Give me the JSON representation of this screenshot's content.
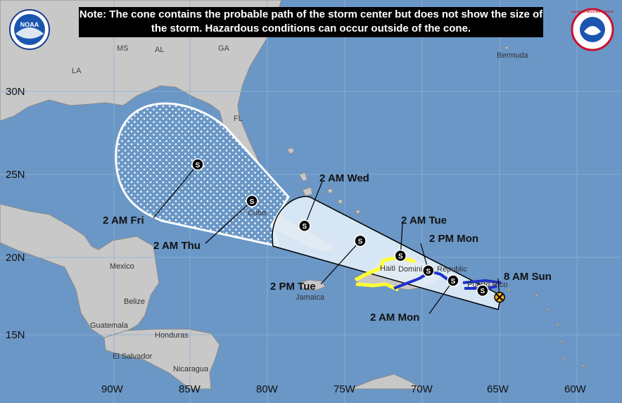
{
  "note": "Note: The cone contains the probable path of the storm center but does not show the size of the storm. Hazardous conditions can occur outside of the cone.",
  "logos": {
    "left": "NOAA",
    "right": "NATIONAL WEATHER SERVICE"
  },
  "colors": {
    "ocean": "#6a97c6",
    "land": "#c8c8c8",
    "cone_day1_3": "#e3eef8",
    "cone_day4_5_dots": "#ffffff",
    "watch_warning_yellow": "#ffff33",
    "watch_warning_blue": "#1f2fcc",
    "track_point": "#000000"
  },
  "places": {
    "states": [
      "MS",
      "AL",
      "GA",
      "LA",
      "FL"
    ],
    "countries": [
      "Bermuda",
      "Cuba",
      "Mexico",
      "Belize",
      "Guatemala",
      "Honduras",
      "El Salvador",
      "Nicaragua",
      "Jamaica",
      "Haiti",
      "Dominican Republic",
      "Puerto Rico"
    ]
  },
  "axes": {
    "lat_labels": [
      "30N",
      "25N",
      "20N",
      "15N"
    ],
    "lon_labels": [
      "90W",
      "85W",
      "80W",
      "75W",
      "70W",
      "65W",
      "60W"
    ]
  },
  "forecast_points": [
    {
      "label": "8 AM Sun",
      "lon": -65.0,
      "lat": 17.6,
      "kind": "current"
    },
    {
      "label": "",
      "lon": -66.1,
      "lat": 18.0,
      "kind": "S"
    },
    {
      "label": "2 AM Mon",
      "lon": -68.0,
      "lat": 18.6,
      "kind": "S"
    },
    {
      "label": "2 PM Mon",
      "lon": -69.6,
      "lat": 19.2,
      "kind": "S"
    },
    {
      "label": "2 AM Tue",
      "lon": -71.4,
      "lat": 20.1,
      "kind": "S"
    },
    {
      "label": "2 PM Tue",
      "lon": -74.0,
      "lat": 21.0,
      "kind": "S"
    },
    {
      "label": "2 AM Wed",
      "lon": -77.6,
      "lat": 21.9,
      "kind": "S"
    },
    {
      "label": "2 AM Thu",
      "lon": -81.0,
      "lat": 23.4,
      "kind": "S"
    },
    {
      "label": "2 AM Fri",
      "lon": -84.5,
      "lat": 25.6,
      "kind": "S"
    }
  ]
}
